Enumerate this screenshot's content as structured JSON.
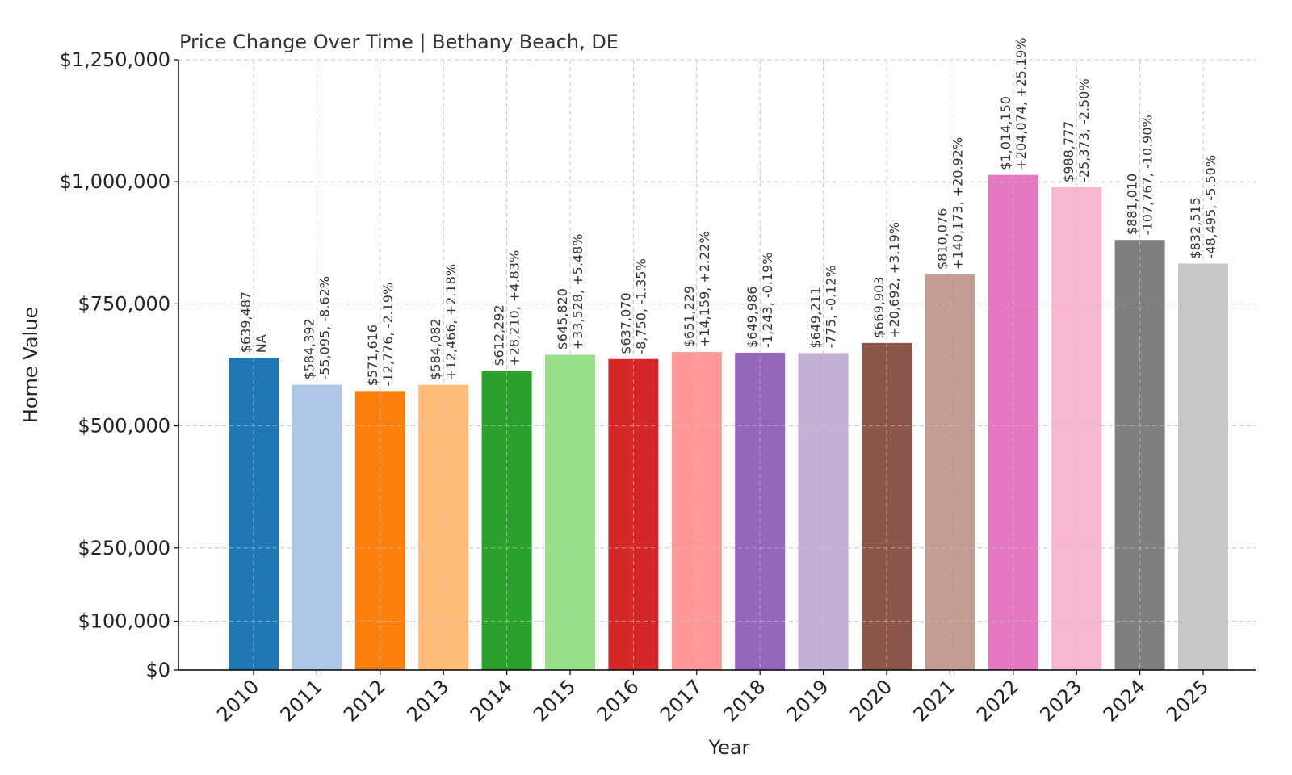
{
  "chart_data": {
    "type": "bar",
    "title": "Price Change Over Time | Bethany Beach, DE",
    "xlabel": "Year",
    "ylabel": "Home Value",
    "ylim": [
      0,
      1250000
    ],
    "yticks": [
      0,
      100000,
      250000,
      500000,
      750000,
      1000000,
      1250000
    ],
    "ytick_labels": [
      "$0",
      "$100,000",
      "$250,000",
      "$500,000",
      "$750,000",
      "$1,000,000",
      "$1,250,000"
    ],
    "grid": true,
    "categories": [
      "2010",
      "2011",
      "2012",
      "2013",
      "2014",
      "2015",
      "2016",
      "2017",
      "2018",
      "2019",
      "2020",
      "2021",
      "2022",
      "2023",
      "2024",
      "2025"
    ],
    "values": [
      639487,
      584392,
      571616,
      584082,
      612292,
      645820,
      637070,
      651229,
      649986,
      649211,
      669903,
      810076,
      1014150,
      988777,
      881010,
      832515
    ],
    "value_labels": [
      "$639,487",
      "$584,392",
      "$571,616",
      "$584,082",
      "$612,292",
      "$645,820",
      "$637,070",
      "$651,229",
      "$649,986",
      "$649,211",
      "$669,903",
      "$810,076",
      "$1,014,150",
      "$988,777",
      "$881,010",
      "$832,515"
    ],
    "change_labels": [
      "NA",
      "-55,095, -8.62%",
      "-12,776, -2.19%",
      "+12,466, +2.18%",
      "+28,210, +4.83%",
      "+33,528, +5.48%",
      "-8,750, -1.35%",
      "+14,159, +2.22%",
      "-1,243, -0.19%",
      "-775, -0.12%",
      "+20,692, +3.19%",
      "+140,173, +20.92%",
      "+204,074, +25.19%",
      "-25,373, -2.50%",
      "-107,767, -10.90%",
      "-48,495, -5.50%"
    ],
    "colors": [
      "#1f77b4",
      "#aec7e8",
      "#ff7f0e",
      "#ffbb78",
      "#2ca02c",
      "#98df8a",
      "#d62728",
      "#ff9896",
      "#9467bd",
      "#c5b0d5",
      "#8c564b",
      "#c49c94",
      "#e377c2",
      "#f7b6d2",
      "#7f7f7f",
      "#c7c7c7"
    ]
  }
}
